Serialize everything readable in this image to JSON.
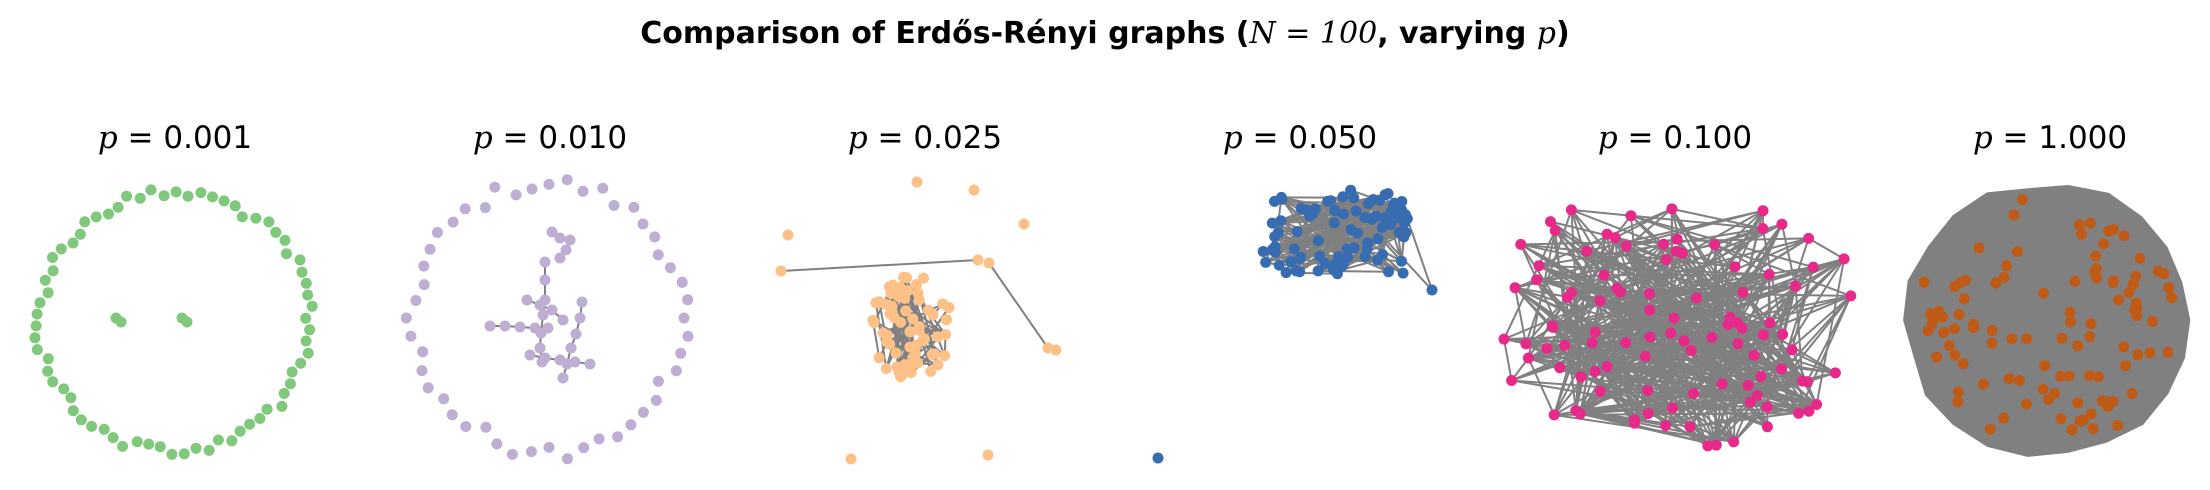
{
  "title": {
    "prefix": "Comparison of Erdős-Rényi graphs (",
    "n_expr": "N = 100",
    "middle": ", varying ",
    "p_symbol": "p",
    "suffix": ")"
  },
  "panels": [
    {
      "p_symbol": "p",
      "p_label": " = 0.001",
      "node_color": "#80c97c",
      "layout": "ring-sparse"
    },
    {
      "p_symbol": "p",
      "p_label": " = 0.010",
      "node_color": "#beaed4",
      "layout": "ring-chains"
    },
    {
      "p_symbol": "p",
      "p_label": " = 0.025",
      "node_color": "#fdc086",
      "layout": "core-outliers"
    },
    {
      "p_symbol": "p",
      "p_label": " = 0.050",
      "node_color": "#386cb0",
      "layout": "dense-core-isolate"
    },
    {
      "p_symbol": "p",
      "p_label": " = 0.100",
      "node_color": "#e7298a",
      "layout": "dense"
    },
    {
      "p_symbol": "p",
      "p_label": " = 1.000",
      "node_color": "#bf5b17",
      "layout": "complete"
    }
  ],
  "edge_color": "#808080"
}
